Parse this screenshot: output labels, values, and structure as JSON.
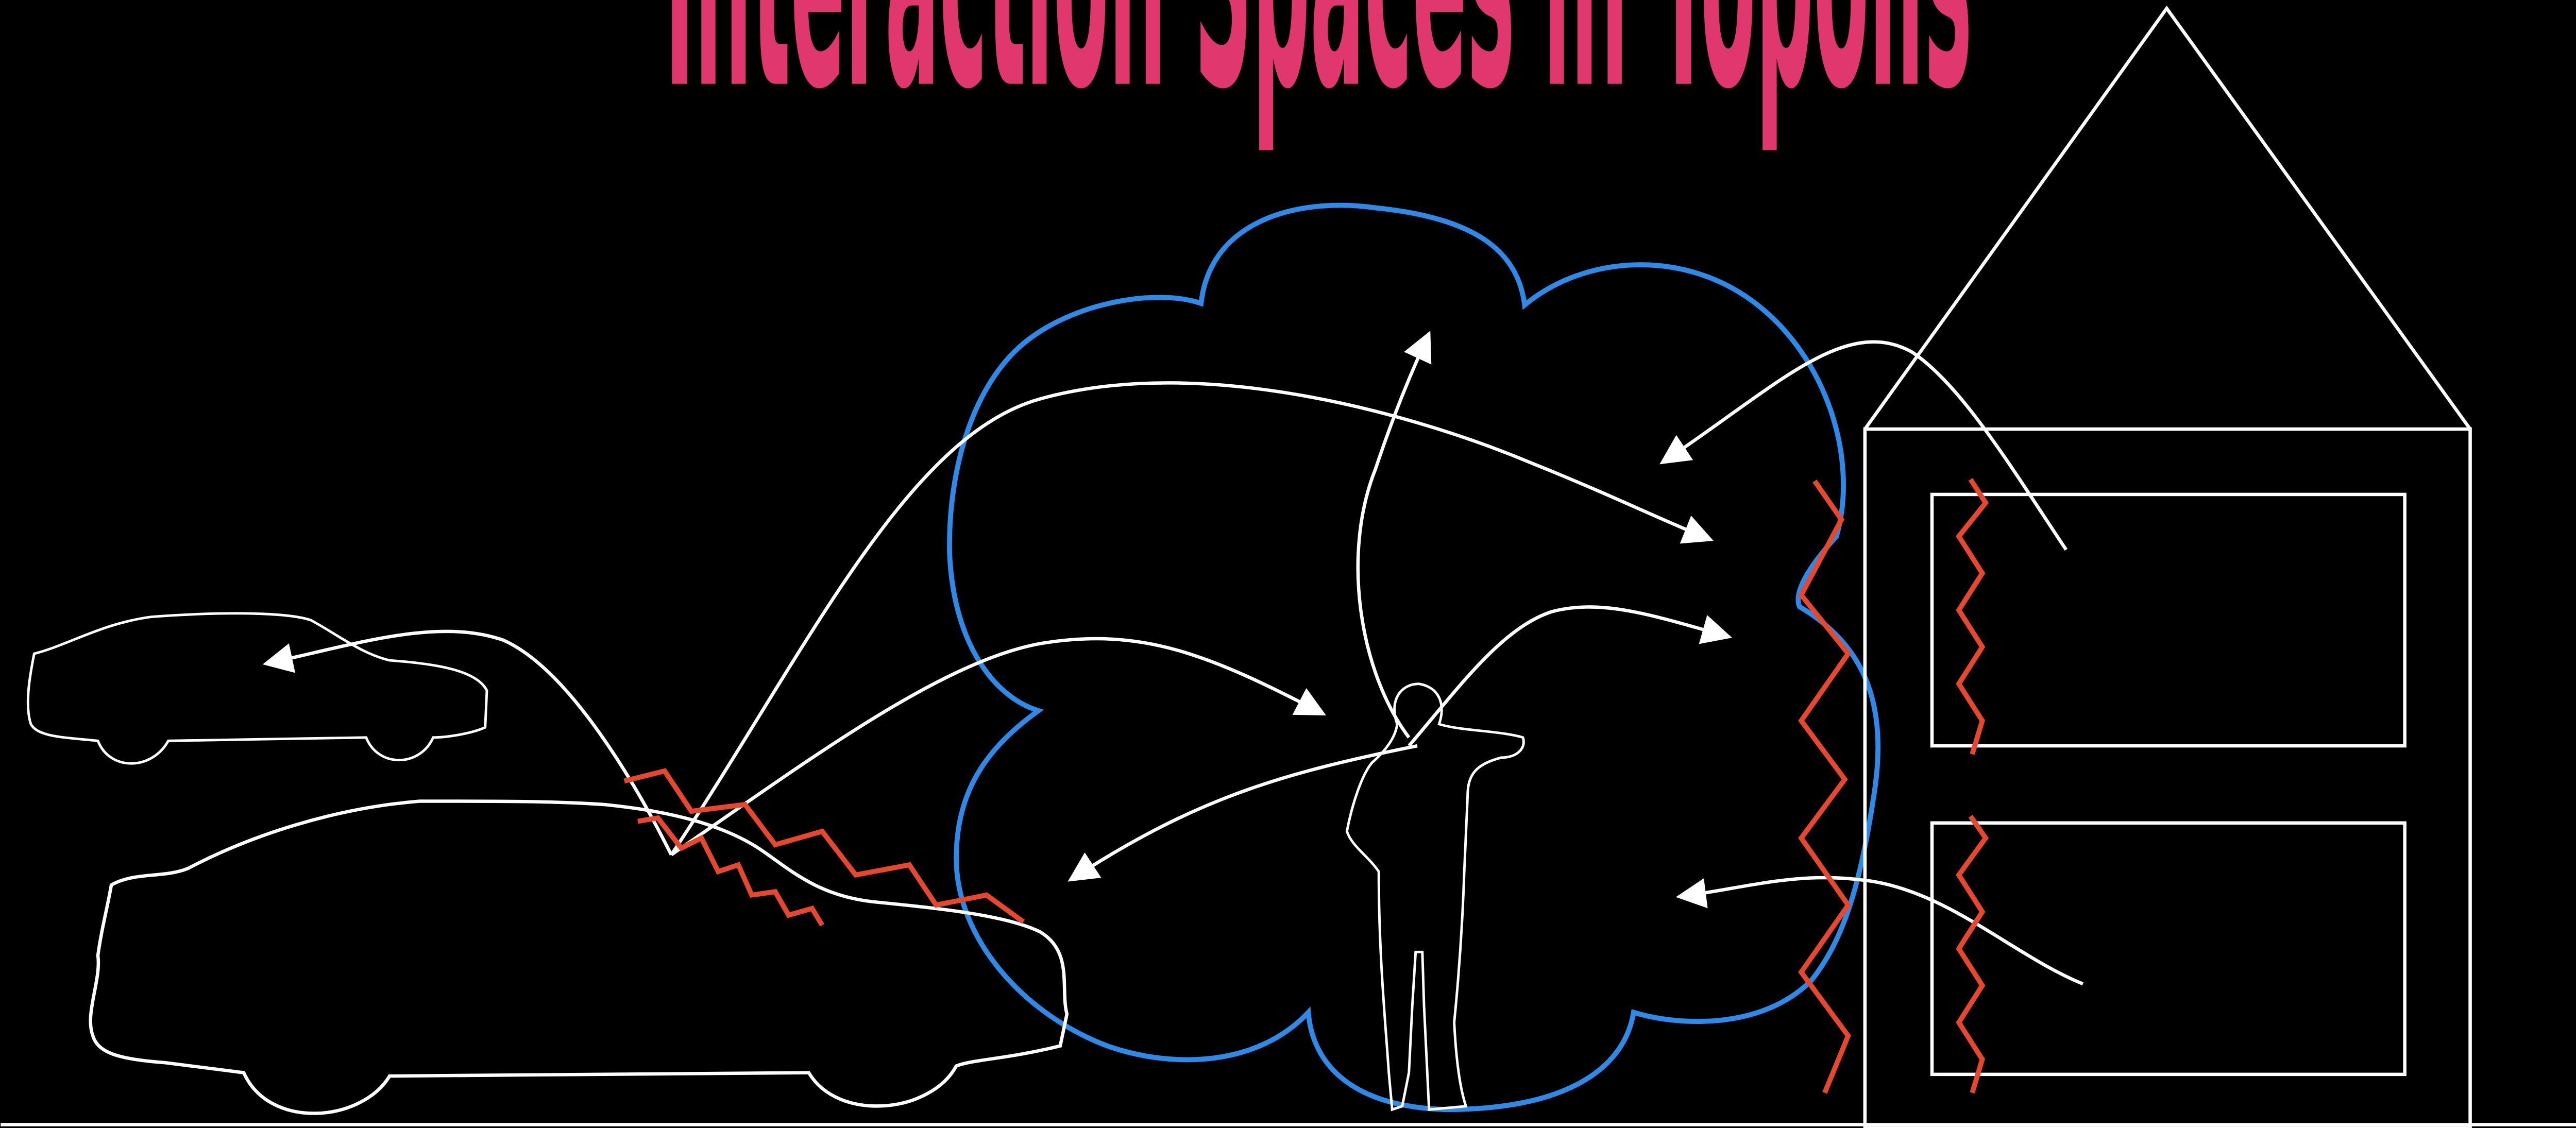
{
  "title": "Interaction Spaces in Topolis",
  "colors": {
    "background": "#000000",
    "title": "#e0386e",
    "outline": "#ffffff",
    "cloud": "#2e8ae6",
    "barrier": "#e5482d"
  },
  "icons": {
    "small_car": "car-silhouette-icon",
    "big_car": "car-silhouette-icon",
    "person": "person-silhouette-icon",
    "house": "house-outline-icon"
  }
}
